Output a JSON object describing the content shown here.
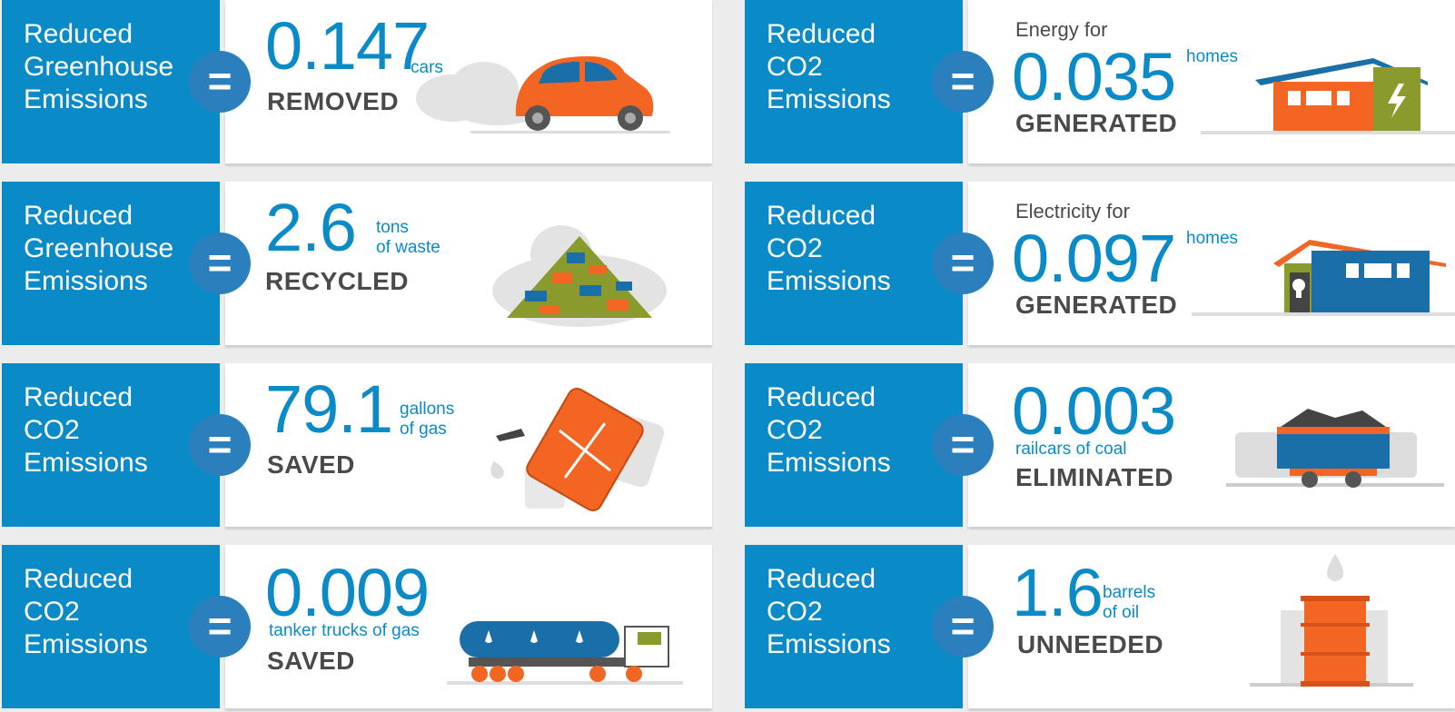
{
  "cards": [
    {
      "label": [
        "Reduced",
        "Greenhouse",
        "Emissions"
      ],
      "value": "0.147",
      "unit": [
        "cars"
      ],
      "verb": "REMOVED",
      "icon": "car-icon"
    },
    {
      "label": [
        "Reduced",
        "CO2",
        "Emissions"
      ],
      "pretext": "Energy for",
      "value": "0.035",
      "unit": [
        "homes"
      ],
      "verb": "GENERATED",
      "icon": "house-lightning-icon"
    },
    {
      "label": [
        "Reduced",
        "Greenhouse",
        "Emissions"
      ],
      "value": "2.6",
      "unit": [
        "tons",
        "of waste"
      ],
      "verb": "RECYCLED",
      "icon": "waste-pile-icon"
    },
    {
      "label": [
        "Reduced",
        "CO2",
        "Emissions"
      ],
      "pretext": "Electricity for",
      "value": "0.097",
      "unit": [
        "homes"
      ],
      "verb": "GENERATED",
      "icon": "house-bulb-icon"
    },
    {
      "label": [
        "Reduced",
        "CO2",
        "Emissions"
      ],
      "value": "79.1",
      "unit": [
        "gallons",
        "of gas"
      ],
      "verb": "SAVED",
      "icon": "gas-can-icon"
    },
    {
      "label": [
        "Reduced",
        "CO2",
        "Emissions"
      ],
      "value": "0.003",
      "unit": [
        "railcars of coal"
      ],
      "verb": "ELIMINATED",
      "icon": "coal-railcar-icon"
    },
    {
      "label": [
        "Reduced",
        "CO2",
        "Emissions"
      ],
      "value": "0.009",
      "unit": [
        "tanker trucks of gas"
      ],
      "verb": "SAVED",
      "icon": "tanker-truck-icon"
    },
    {
      "label": [
        "Reduced",
        "CO2",
        "Emissions"
      ],
      "value": "1.6",
      "unit": [
        "barrels",
        "of oil"
      ],
      "verb": "UNNEEDED",
      "icon": "oil-barrel-icon"
    }
  ],
  "equals": "=",
  "colors": {
    "blue": "#0a8bc8",
    "orange": "#f26522",
    "green": "#8a9a2c",
    "gray": "#4a4a4a"
  }
}
